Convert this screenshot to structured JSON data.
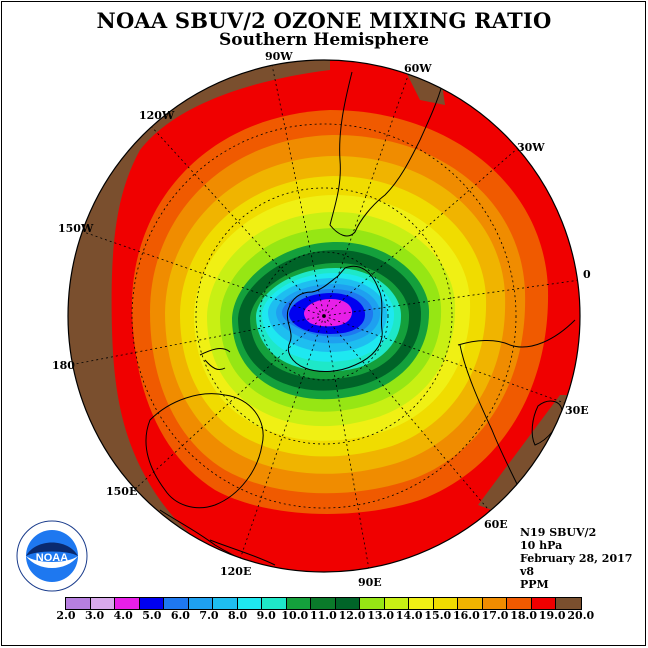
{
  "title": "NOAA SBUV/2 OZONE MIXING RATIO",
  "subtitle": "Southern Hemisphere",
  "lon_labels": [
    {
      "text": "90W"
    },
    {
      "text": "60W"
    },
    {
      "text": "120W"
    },
    {
      "text": "30W"
    },
    {
      "text": "150W"
    },
    {
      "text": "0"
    },
    {
      "text": "180"
    },
    {
      "text": "30E"
    },
    {
      "text": "150E"
    },
    {
      "text": "60E"
    },
    {
      "text": "120E"
    },
    {
      "text": "90E"
    }
  ],
  "info": {
    "satellite": "N19 SBUV/2",
    "level": "10 hPa",
    "date": "February 28, 2017",
    "version": "v8",
    "units": "PPM"
  },
  "logo_text": "NOAA",
  "colorbar": {
    "colors": [
      "#b77fe0",
      "#d9a9ec",
      "#e81fe8",
      "#0000f0",
      "#1e78f0",
      "#1ea0f0",
      "#1ebef0",
      "#1ee8f0",
      "#1ee8c8",
      "#14a03c",
      "#0a7a2a",
      "#006428",
      "#96e614",
      "#c8f014",
      "#f0f014",
      "#f0dc00",
      "#f0b400",
      "#f08c00",
      "#f05a00",
      "#f00000",
      "#7a4f2e"
    ],
    "ticks": [
      "2.0",
      "3.0",
      "4.0",
      "5.0",
      "6.0",
      "7.0",
      "8.0",
      "9.0",
      "10.0",
      "11.0",
      "12.0",
      "13.0",
      "14.0",
      "15.0",
      "16.0",
      "17.0",
      "18.0",
      "19.0",
      "20.0"
    ]
  }
}
